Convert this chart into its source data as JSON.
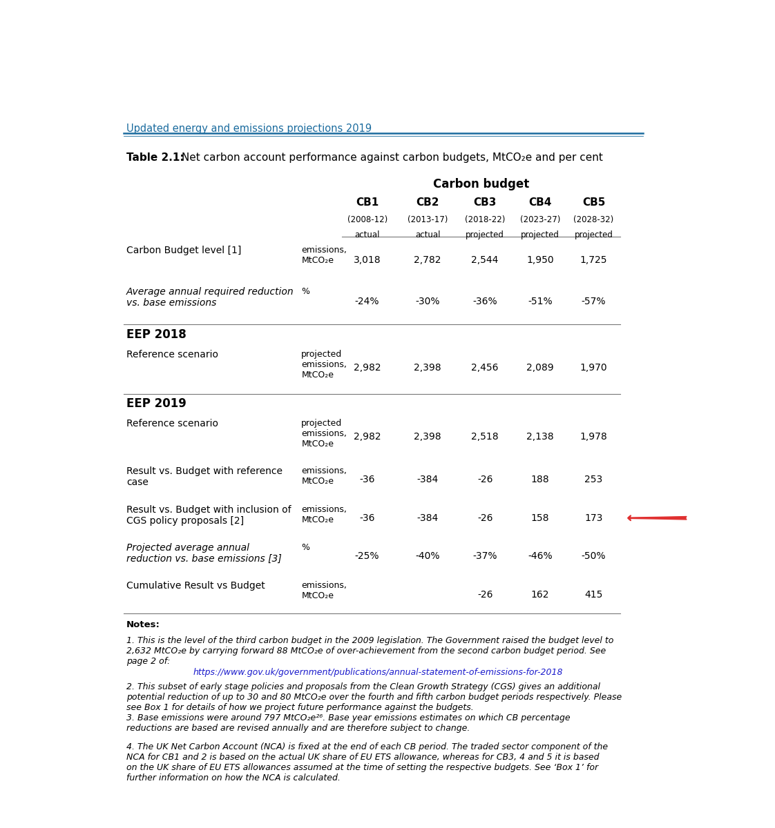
{
  "header_title": "Updated energy and emissions projections 2019",
  "table_title_bold": "Table 2.1:",
  "table_title_rest": " Net carbon account performance against carbon budgets, MtCO₂e and per cent",
  "carbon_budget_label": "Carbon budget",
  "columns": [
    "CB1",
    "CB2",
    "CB3",
    "CB4",
    "CB5"
  ],
  "col_years": [
    "(2008-12)",
    "(2013-17)",
    "(2018-22)",
    "(2023-27)",
    "(2028-32)"
  ],
  "col_status": [
    "actual",
    "actual",
    "projected",
    "projected",
    "projected"
  ],
  "background_color": "#ffffff",
  "header_color": "#1a6b9e",
  "line_color": "#999999",
  "text_color": "#1a1a1a",
  "arrow_color": "#e03030",
  "url_text": "https://www.gov.uk/government/publications/annual-statement-of-emissions-for-2018",
  "url_color": "#1a1acc"
}
